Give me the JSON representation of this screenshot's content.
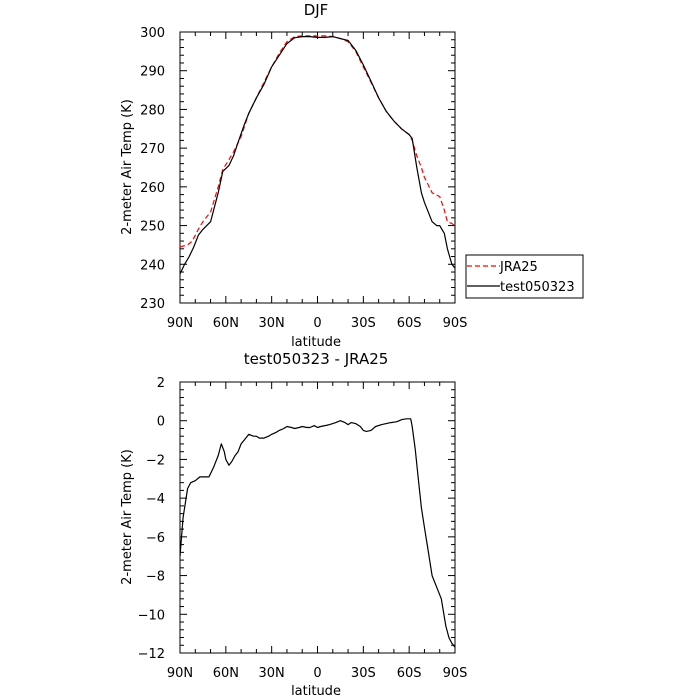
{
  "chart_data": [
    {
      "type": "line",
      "title": "DJF",
      "xlabel": "latitude",
      "ylabel": "2-meter Air Temp (K)",
      "xlim": [
        90,
        -90
      ],
      "ylim": [
        230,
        300
      ],
      "xticks": [
        90,
        60,
        30,
        0,
        -30,
        -60,
        -90
      ],
      "xtick_labels": [
        "90N",
        "60N",
        "30N",
        "0",
        "30S",
        "60S",
        "90S"
      ],
      "yticks": [
        230,
        240,
        250,
        260,
        270,
        280,
        290,
        300
      ],
      "grid": false,
      "legend": {
        "placement": "right",
        "entries": [
          "JRA25",
          "test050323"
        ]
      },
      "series": [
        {
          "name": "JRA25",
          "color": "#ff0000",
          "dash": "dashed",
          "x": [
            90,
            85,
            82,
            78,
            75,
            70,
            65,
            62,
            58,
            55,
            50,
            45,
            40,
            35,
            30,
            25,
            20,
            15,
            10,
            5,
            0,
            -5,
            -10,
            -15,
            -20,
            -25,
            -30,
            -35,
            -40,
            -45,
            -50,
            -55,
            -60,
            -62,
            -65,
            -68,
            -70,
            -75,
            -77,
            -80,
            -83,
            -85,
            -88,
            -90
          ],
          "y": [
            244.5,
            245,
            246,
            249,
            251,
            253.5,
            260,
            264.5,
            267,
            269,
            273,
            279,
            283,
            287,
            291,
            294.5,
            297.5,
            298.8,
            299,
            299,
            299,
            299,
            298.8,
            298.3,
            297.5,
            295,
            291,
            287,
            283,
            279.5,
            277,
            275,
            273.5,
            272,
            268,
            265,
            262.5,
            258.5,
            258,
            257.5,
            254,
            251,
            250.5,
            250
          ]
        },
        {
          "name": "test050323",
          "color": "#000000",
          "dash": "solid",
          "x": [
            90,
            87,
            84,
            81,
            78,
            75,
            70,
            65,
            62,
            58,
            55,
            52,
            48,
            45,
            40,
            35,
            30,
            25,
            20,
            15,
            10,
            5,
            0,
            -5,
            -10,
            -15,
            -20,
            -25,
            -30,
            -35,
            -40,
            -45,
            -50,
            -55,
            -60,
            -62,
            -65,
            -68,
            -70,
            -75,
            -78,
            -80,
            -83,
            -85,
            -88,
            -90
          ],
          "y": [
            237.5,
            240,
            242,
            244.5,
            247.5,
            249,
            251,
            258.5,
            264,
            265.5,
            268,
            271.5,
            276,
            279,
            283,
            286.5,
            291,
            294,
            297,
            298.5,
            298.8,
            298.8,
            298.6,
            298.6,
            298.8,
            298.3,
            297.8,
            295.3,
            291.5,
            287.3,
            283,
            279.5,
            277,
            275,
            273.5,
            272.5,
            265,
            258.5,
            256,
            251,
            250,
            250,
            248,
            244,
            240,
            239
          ]
        }
      ]
    },
    {
      "type": "line",
      "title": "test050323 - JRA25",
      "xlabel": "latitude",
      "ylabel": "2-meter Air Temp (K)",
      "xlim": [
        90,
        -90
      ],
      "ylim": [
        -12,
        2
      ],
      "xticks": [
        90,
        60,
        30,
        0,
        -30,
        -60,
        -90
      ],
      "xtick_labels": [
        "90N",
        "60N",
        "30N",
        "0",
        "30S",
        "60S",
        "90S"
      ],
      "yticks": [
        -12,
        -10,
        -8,
        -6,
        -4,
        -2,
        0,
        2
      ],
      "grid": false,
      "series": [
        {
          "color": "#000000",
          "dash": "solid",
          "x": [
            90,
            88,
            85,
            83,
            80,
            77,
            74,
            71,
            68,
            65,
            63,
            61,
            60,
            58,
            56,
            54,
            52,
            50,
            48,
            45,
            42,
            40,
            38,
            35,
            32,
            30,
            27,
            25,
            22,
            20,
            17,
            15,
            12,
            10,
            7,
            5,
            2,
            0,
            -2,
            -5,
            -8,
            -12,
            -15,
            -18,
            -20,
            -22,
            -25,
            -28,
            -30,
            -32,
            -35,
            -38,
            -42,
            -45,
            -48,
            -52,
            -55,
            -58,
            -61,
            -62,
            -64,
            -66,
            -68,
            -70,
            -72,
            -75,
            -78,
            -81,
            -84,
            -86,
            -88,
            -90
          ],
          "y": [
            -7,
            -5,
            -3.5,
            -3.2,
            -3.1,
            -2.9,
            -2.9,
            -2.9,
            -2.4,
            -1.8,
            -1.2,
            -1.6,
            -2,
            -2.3,
            -2.1,
            -1.8,
            -1.6,
            -1.2,
            -1,
            -0.7,
            -0.8,
            -0.8,
            -0.9,
            -0.9,
            -0.8,
            -0.7,
            -0.6,
            -0.5,
            -0.4,
            -0.3,
            -0.35,
            -0.4,
            -0.35,
            -0.3,
            -0.35,
            -0.35,
            -0.25,
            -0.35,
            -0.3,
            -0.25,
            -0.2,
            -0.1,
            0,
            -0.1,
            -0.2,
            -0.1,
            -0.15,
            -0.3,
            -0.5,
            -0.55,
            -0.5,
            -0.3,
            -0.2,
            -0.15,
            -0.1,
            -0.05,
            0.05,
            0.1,
            0.1,
            -0.3,
            -1.5,
            -3,
            -4.5,
            -5.5,
            -6.5,
            -8,
            -8.6,
            -9.2,
            -10.6,
            -11.2,
            -11.5,
            -11.7
          ]
        }
      ]
    }
  ]
}
